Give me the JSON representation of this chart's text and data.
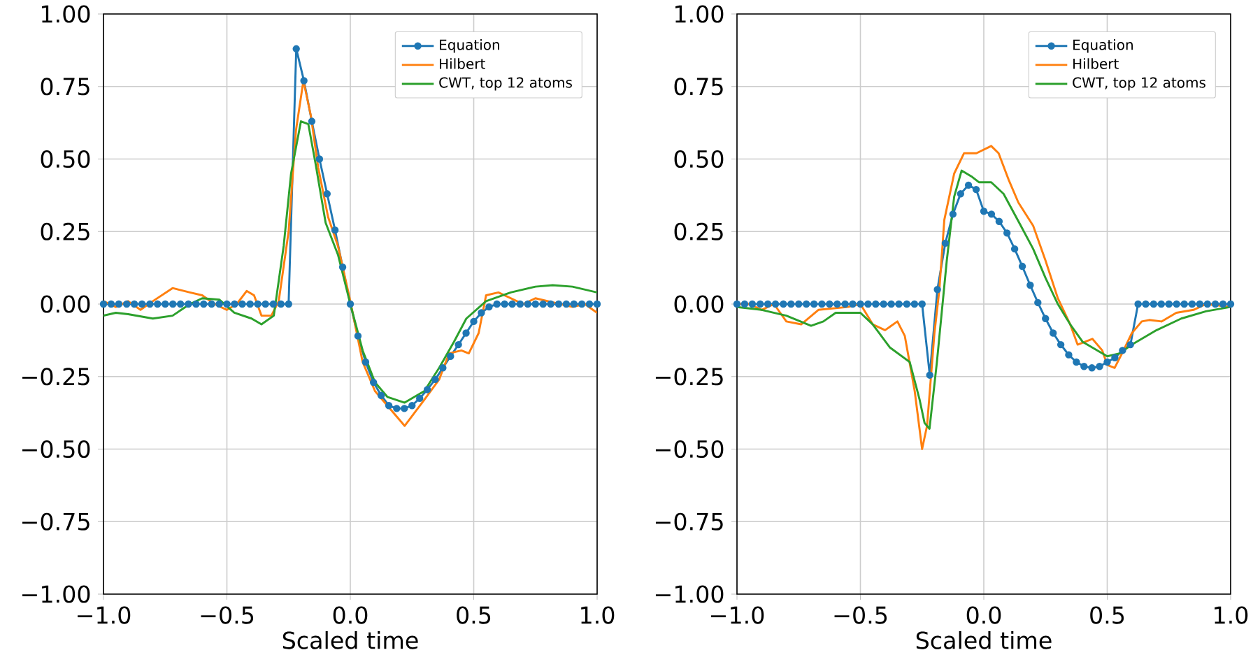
{
  "chart_data": [
    {
      "type": "line",
      "xlabel": "Scaled time",
      "xlim": [
        -1,
        1
      ],
      "ylim": [
        -1,
        1
      ],
      "grid": true,
      "legend": "top right",
      "xticks": [
        {
          "value": -1,
          "label": "−1.0"
        },
        {
          "value": -0.5,
          "label": "−0.5"
        },
        {
          "value": 0,
          "label": "0.0"
        },
        {
          "value": 0.5,
          "label": "0.5"
        },
        {
          "value": 1,
          "label": "1.0"
        }
      ],
      "yticks": [
        {
          "value": -1,
          "label": "−1.00"
        },
        {
          "value": -0.75,
          "label": "−0.75"
        },
        {
          "value": -0.5,
          "label": "−0.50"
        },
        {
          "value": -0.25,
          "label": "−0.25"
        },
        {
          "value": 0,
          "label": "0.00"
        },
        {
          "value": 0.25,
          "label": "0.25"
        },
        {
          "value": 0.5,
          "label": "0.50"
        },
        {
          "value": 0.75,
          "label": "0.75"
        },
        {
          "value": 1,
          "label": "1.00"
        }
      ],
      "series": [
        {
          "name": "Equation",
          "color": "#1f77b4",
          "marker": "circle",
          "x": [
            -1,
            -0.969,
            -0.938,
            -0.906,
            -0.875,
            -0.844,
            -0.812,
            -0.781,
            -0.75,
            -0.719,
            -0.688,
            -0.656,
            -0.625,
            -0.594,
            -0.562,
            -0.531,
            -0.5,
            -0.469,
            -0.438,
            -0.406,
            -0.375,
            -0.344,
            -0.312,
            -0.281,
            -0.25,
            -0.219,
            -0.188,
            -0.156,
            -0.125,
            -0.094,
            -0.062,
            -0.031,
            0,
            0.031,
            0.062,
            0.094,
            0.125,
            0.156,
            0.188,
            0.219,
            0.25,
            0.281,
            0.312,
            0.344,
            0.375,
            0.406,
            0.438,
            0.469,
            0.5,
            0.531,
            0.562,
            0.594,
            0.625,
            0.656,
            0.688,
            0.719,
            0.75,
            0.781,
            0.812,
            0.844,
            0.875,
            0.906,
            0.938,
            0.969,
            1
          ],
          "values": [
            0,
            0,
            0,
            0,
            0,
            0,
            0,
            0,
            0,
            0,
            0,
            0,
            0,
            0,
            0,
            0,
            0,
            0,
            0,
            0,
            0,
            0,
            0,
            0,
            0,
            0.88,
            0.77,
            0.63,
            0.5,
            0.38,
            0.255,
            0.127,
            0,
            -0.11,
            -0.2,
            -0.27,
            -0.315,
            -0.35,
            -0.36,
            -0.36,
            -0.35,
            -0.325,
            -0.295,
            -0.26,
            -0.22,
            -0.18,
            -0.14,
            -0.1,
            -0.06,
            -0.03,
            -0.01,
            0,
            0,
            0,
            0,
            0,
            0,
            0,
            0,
            0,
            0,
            0,
            0,
            0,
            0
          ]
        },
        {
          "name": "Hilbert",
          "color": "#ff7f0e",
          "marker": "none",
          "x": [
            -1,
            -0.95,
            -0.9,
            -0.85,
            -0.8,
            -0.72,
            -0.65,
            -0.6,
            -0.55,
            -0.5,
            -0.46,
            -0.42,
            -0.39,
            -0.36,
            -0.32,
            -0.29,
            -0.25,
            -0.22,
            -0.19,
            -0.16,
            -0.13,
            -0.09,
            -0.05,
            0,
            0.05,
            0.1,
            0.15,
            0.22,
            0.3,
            0.36,
            0.4,
            0.45,
            0.48,
            0.52,
            0.55,
            0.6,
            0.65,
            0.7,
            0.75,
            0.8,
            0.85,
            0.9,
            0.95,
            1
          ],
          "values": [
            0.01,
            -0.01,
            0.01,
            -0.02,
            0.01,
            0.055,
            0.04,
            0.03,
            0,
            -0.02,
            0,
            0.045,
            0.03,
            -0.04,
            -0.04,
            0.01,
            0.25,
            0.6,
            0.77,
            0.65,
            0.47,
            0.3,
            0.2,
            0.01,
            -0.2,
            -0.3,
            -0.35,
            -0.42,
            -0.33,
            -0.26,
            -0.17,
            -0.16,
            -0.17,
            -0.1,
            0.03,
            0.04,
            0.02,
            0,
            0.02,
            0.01,
            0,
            -0.01,
            0,
            -0.03
          ]
        },
        {
          "name": "CWT, top 12 atoms",
          "color": "#2ca02c",
          "marker": "none",
          "x": [
            -1,
            -0.95,
            -0.9,
            -0.8,
            -0.72,
            -0.65,
            -0.6,
            -0.53,
            -0.47,
            -0.4,
            -0.36,
            -0.31,
            -0.27,
            -0.24,
            -0.2,
            -0.17,
            -0.14,
            -0.1,
            -0.05,
            0,
            0.05,
            0.1,
            0.15,
            0.22,
            0.3,
            0.36,
            0.42,
            0.47,
            0.55,
            0.65,
            0.75,
            0.82,
            0.9,
            1
          ],
          "values": [
            -0.04,
            -0.03,
            -0.035,
            -0.05,
            -0.04,
            0,
            0.02,
            0.015,
            -0.03,
            -0.05,
            -0.07,
            -0.04,
            0.2,
            0.45,
            0.63,
            0.62,
            0.48,
            0.28,
            0.17,
            0,
            -0.16,
            -0.27,
            -0.32,
            -0.34,
            -0.3,
            -0.22,
            -0.13,
            -0.05,
            0.01,
            0.04,
            0.06,
            0.065,
            0.06,
            0.04
          ]
        }
      ]
    },
    {
      "type": "line",
      "xlabel": "Scaled time",
      "xlim": [
        -1,
        1
      ],
      "ylim": [
        -1,
        1
      ],
      "grid": true,
      "legend": "top right",
      "xticks": [
        {
          "value": -1,
          "label": "−1.0"
        },
        {
          "value": -0.5,
          "label": "−0.5"
        },
        {
          "value": 0,
          "label": "0.0"
        },
        {
          "value": 0.5,
          "label": "0.5"
        },
        {
          "value": 1,
          "label": "1.0"
        }
      ],
      "yticks": [
        {
          "value": -1,
          "label": "−1.00"
        },
        {
          "value": -0.75,
          "label": "−0.75"
        },
        {
          "value": -0.5,
          "label": "−0.50"
        },
        {
          "value": -0.25,
          "label": "−0.25"
        },
        {
          "value": 0,
          "label": "0.00"
        },
        {
          "value": 0.25,
          "label": "0.25"
        },
        {
          "value": 0.5,
          "label": "0.50"
        },
        {
          "value": 0.75,
          "label": "0.75"
        },
        {
          "value": 1,
          "label": "1.00"
        }
      ],
      "series": [
        {
          "name": "Equation",
          "color": "#1f77b4",
          "marker": "circle",
          "x": [
            -1,
            -0.969,
            -0.938,
            -0.906,
            -0.875,
            -0.844,
            -0.812,
            -0.781,
            -0.75,
            -0.719,
            -0.688,
            -0.656,
            -0.625,
            -0.594,
            -0.562,
            -0.531,
            -0.5,
            -0.469,
            -0.438,
            -0.406,
            -0.375,
            -0.344,
            -0.312,
            -0.281,
            -0.25,
            -0.219,
            -0.188,
            -0.156,
            -0.125,
            -0.094,
            -0.062,
            -0.031,
            0,
            0.031,
            0.062,
            0.094,
            0.125,
            0.156,
            0.188,
            0.219,
            0.25,
            0.281,
            0.312,
            0.344,
            0.375,
            0.406,
            0.438,
            0.469,
            0.5,
            0.531,
            0.562,
            0.594,
            0.625,
            0.656,
            0.688,
            0.719,
            0.75,
            0.781,
            0.812,
            0.844,
            0.875,
            0.906,
            0.938,
            0.969,
            1
          ],
          "values": [
            0,
            0,
            0,
            0,
            0,
            0,
            0,
            0,
            0,
            0,
            0,
            0,
            0,
            0,
            0,
            0,
            0,
            0,
            0,
            0,
            0,
            0,
            0,
            0,
            0,
            -0.245,
            0.05,
            0.21,
            0.31,
            0.38,
            0.41,
            0.395,
            0.32,
            0.31,
            0.285,
            0.245,
            0.19,
            0.13,
            0.065,
            0.005,
            -0.05,
            -0.1,
            -0.14,
            -0.175,
            -0.2,
            -0.215,
            -0.22,
            -0.215,
            -0.2,
            -0.185,
            -0.16,
            -0.14,
            0,
            0,
            0,
            0,
            0,
            0,
            0,
            0,
            0,
            0,
            0,
            0,
            0
          ]
        },
        {
          "name": "Hilbert",
          "color": "#ff7f0e",
          "marker": "none",
          "x": [
            -1,
            -0.95,
            -0.9,
            -0.85,
            -0.8,
            -0.74,
            -0.67,
            -0.55,
            -0.5,
            -0.45,
            -0.4,
            -0.35,
            -0.32,
            -0.28,
            -0.25,
            -0.23,
            -0.2,
            -0.18,
            -0.16,
            -0.12,
            -0.08,
            -0.03,
            0.03,
            0.06,
            0.1,
            0.14,
            0.2,
            0.25,
            0.3,
            0.35,
            0.38,
            0.44,
            0.48,
            0.5,
            0.53,
            0.56,
            0.6,
            0.64,
            0.67,
            0.72,
            0.78,
            0.85,
            0.9,
            1
          ],
          "values": [
            0,
            0,
            -0.02,
            0,
            -0.06,
            -0.07,
            -0.02,
            -0.01,
            0,
            -0.07,
            -0.09,
            -0.06,
            -0.11,
            -0.3,
            -0.5,
            -0.42,
            -0.1,
            0.05,
            0.29,
            0.45,
            0.52,
            0.52,
            0.545,
            0.52,
            0.43,
            0.35,
            0.27,
            0.15,
            0.02,
            -0.07,
            -0.14,
            -0.12,
            -0.16,
            -0.21,
            -0.22,
            -0.17,
            -0.1,
            -0.06,
            -0.055,
            -0.06,
            -0.03,
            -0.02,
            0,
            -0.01
          ]
        },
        {
          "name": "CWT, top 12 atoms",
          "color": "#2ca02c",
          "marker": "none",
          "x": [
            -1,
            -0.9,
            -0.8,
            -0.7,
            -0.65,
            -0.6,
            -0.5,
            -0.45,
            -0.38,
            -0.3,
            -0.26,
            -0.24,
            -0.22,
            -0.19,
            -0.15,
            -0.12,
            -0.09,
            -0.05,
            -0.02,
            0.03,
            0.08,
            0.15,
            0.2,
            0.25,
            0.3,
            0.35,
            0.4,
            0.5,
            0.55,
            0.6,
            0.7,
            0.8,
            0.9,
            1
          ],
          "values": [
            -0.01,
            -0.02,
            -0.04,
            -0.075,
            -0.06,
            -0.03,
            -0.03,
            -0.07,
            -0.15,
            -0.2,
            -0.33,
            -0.41,
            -0.43,
            -0.2,
            0.15,
            0.37,
            0.46,
            0.44,
            0.42,
            0.42,
            0.38,
            0.27,
            0.19,
            0.09,
            0,
            -0.07,
            -0.13,
            -0.18,
            -0.17,
            -0.14,
            -0.09,
            -0.05,
            -0.025,
            -0.01
          ]
        }
      ]
    }
  ]
}
